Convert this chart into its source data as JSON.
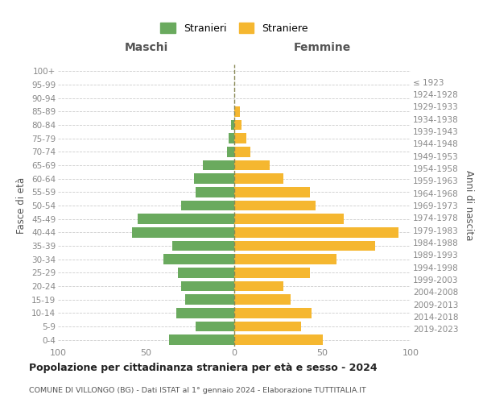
{
  "age_groups": [
    "0-4",
    "5-9",
    "10-14",
    "15-19",
    "20-24",
    "25-29",
    "30-34",
    "35-39",
    "40-44",
    "45-49",
    "50-54",
    "55-59",
    "60-64",
    "65-69",
    "70-74",
    "75-79",
    "80-84",
    "85-89",
    "90-94",
    "95-99",
    "100+"
  ],
  "birth_years": [
    "2019-2023",
    "2014-2018",
    "2009-2013",
    "2004-2008",
    "1999-2003",
    "1994-1998",
    "1989-1993",
    "1984-1988",
    "1979-1983",
    "1974-1978",
    "1969-1973",
    "1964-1968",
    "1959-1963",
    "1954-1958",
    "1949-1953",
    "1944-1948",
    "1939-1943",
    "1934-1938",
    "1929-1933",
    "1924-1928",
    "≤ 1923"
  ],
  "maschi": [
    37,
    22,
    33,
    28,
    30,
    32,
    40,
    35,
    58,
    55,
    30,
    22,
    23,
    18,
    4,
    3,
    2,
    0,
    0,
    0,
    0
  ],
  "femmine": [
    50,
    38,
    44,
    32,
    28,
    43,
    58,
    80,
    93,
    62,
    46,
    43,
    28,
    20,
    9,
    7,
    4,
    3,
    0,
    0,
    0
  ],
  "maschi_color": "#6aaa5e",
  "femmine_color": "#f5b730",
  "grid_color": "#cccccc",
  "center_line_color": "#888855",
  "title": "Popolazione per cittadinanza straniera per età e sesso - 2024",
  "subtitle": "COMUNE DI VILLONGO (BG) - Dati ISTAT al 1° gennaio 2024 - Elaborazione TUTTITALIA.IT",
  "ylabel_left": "Fasce di età",
  "ylabel_right": "Anni di nascita",
  "legend_maschi": "Stranieri",
  "legend_femmine": "Straniere",
  "xlim": 100,
  "header_maschi": "Maschi",
  "header_femmine": "Femmine",
  "tick_color": "#888888",
  "label_color": "#555555",
  "title_color": "#222222"
}
